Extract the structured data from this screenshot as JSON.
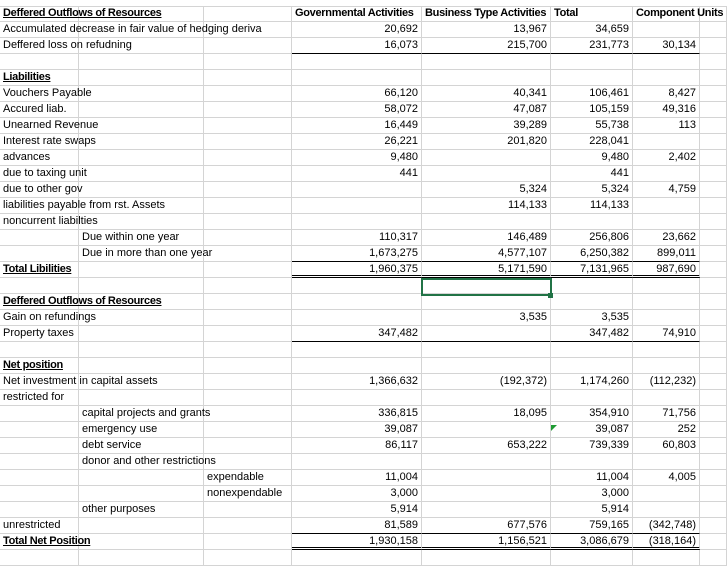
{
  "header": {
    "gov": "Governmental Activities",
    "bus": "Business Type Activities",
    "total": "Total",
    "comp": "Component Units"
  },
  "rows": [
    {
      "label": "Deffered Outflows of Resources",
      "col": 0,
      "style": "b",
      "values": [
        "",
        "",
        "",
        ""
      ]
    },
    {
      "label": "Accumulated decrease in fair value of hedging deriva",
      "col": 0,
      "values": [
        "20,692",
        "13,967",
        "34,659",
        ""
      ]
    },
    {
      "label": "Deffered loss on refudning",
      "col": 0,
      "border": "bl1",
      "values": [
        "16,073",
        "215,700",
        "231,773",
        "30,134"
      ]
    },
    {
      "label": "",
      "col": 0,
      "values": [
        "",
        "",
        "",
        ""
      ]
    },
    {
      "label": "Liabilities",
      "col": 0,
      "style": "b",
      "values": [
        "",
        "",
        "",
        ""
      ]
    },
    {
      "label": "Vouchers Payable",
      "col": 0,
      "values": [
        "66,120",
        "40,341",
        "106,461",
        "8,427"
      ]
    },
    {
      "label": "Accured liab.",
      "col": 0,
      "values": [
        "58,072",
        "47,087",
        "105,159",
        "49,316"
      ]
    },
    {
      "label": "Unearned Revenue",
      "col": 0,
      "values": [
        "16,449",
        "39,289",
        "55,738",
        "113"
      ]
    },
    {
      "label": "Interest rate swaps",
      "col": 0,
      "values": [
        "26,221",
        "201,820",
        "228,041",
        ""
      ]
    },
    {
      "label": "advances",
      "col": 0,
      "values": [
        "9,480",
        "",
        "9,480",
        "2,402"
      ]
    },
    {
      "label": "due to taxing unit",
      "col": 0,
      "values": [
        "441",
        "",
        "441",
        ""
      ]
    },
    {
      "label": "due to other gov",
      "col": 0,
      "values": [
        "",
        "5,324",
        "5,324",
        "4,759"
      ]
    },
    {
      "label": "liabilities payable from rst. Assets",
      "col": 0,
      "values": [
        "",
        "114,133",
        "114,133",
        ""
      ]
    },
    {
      "label": "noncurrent liabilties",
      "col": 0,
      "values": [
        "",
        "",
        "",
        ""
      ]
    },
    {
      "label": "Due within one year",
      "col": 1,
      "values": [
        "110,317",
        "146,489",
        "256,806",
        "23,662"
      ]
    },
    {
      "label": "Due in more than one year",
      "col": 1,
      "border": "bl1",
      "values": [
        "1,673,275",
        "4,577,107",
        "6,250,382",
        "899,011"
      ]
    },
    {
      "label": "Total Libilities",
      "col": 0,
      "style": "b",
      "border": "bl2",
      "values": [
        "1,960,375",
        "5,171,590",
        "7,131,965",
        "987,690"
      ]
    },
    {
      "label": "",
      "col": 0,
      "values": [
        "",
        "",
        "",
        ""
      ]
    },
    {
      "label": "Deffered Outflows of Resources",
      "col": 0,
      "style": "b",
      "values": [
        "",
        "",
        "",
        ""
      ]
    },
    {
      "label": "Gain on refundings",
      "col": 0,
      "values": [
        "",
        "3,535",
        "3,535",
        ""
      ]
    },
    {
      "label": "Property taxes",
      "col": 0,
      "border": "bl1",
      "values": [
        "347,482",
        "",
        "347,482",
        "74,910"
      ]
    },
    {
      "label": "",
      "col": 0,
      "values": [
        "",
        "",
        "",
        ""
      ]
    },
    {
      "label": "Net position",
      "col": 0,
      "style": "b",
      "values": [
        "",
        "",
        "",
        ""
      ]
    },
    {
      "label": "Net investment in capital assets",
      "col": 0,
      "values": [
        "1,366,632",
        "(192,372)",
        "1,174,260",
        "(112,232)"
      ]
    },
    {
      "label": "restricted for",
      "col": 0,
      "values": [
        "",
        "",
        "",
        ""
      ]
    },
    {
      "label": "capital projects and grants",
      "col": 1,
      "values": [
        "336,815",
        "18,095",
        "354,910",
        "71,756"
      ]
    },
    {
      "label": "emergency use",
      "col": 1,
      "values": [
        "39,087",
        "",
        "39,087",
        "252"
      ]
    },
    {
      "label": "debt service",
      "col": 1,
      "values": [
        "86,117",
        "653,222",
        "739,339",
        "60,803"
      ]
    },
    {
      "label": "donor and other restrictions",
      "col": 1,
      "values": [
        "",
        "",
        "",
        ""
      ]
    },
    {
      "label": "expendable",
      "col": 2,
      "values": [
        "11,004",
        "",
        "11,004",
        "4,005"
      ]
    },
    {
      "label": "nonexpendable",
      "col": 2,
      "values": [
        "3,000",
        "",
        "3,000",
        ""
      ]
    },
    {
      "label": "other purposes",
      "col": 1,
      "values": [
        "5,914",
        "",
        "5,914",
        ""
      ]
    },
    {
      "label": "unrestricted",
      "col": 0,
      "border": "bl1",
      "values": [
        "81,589",
        "677,576",
        "759,165",
        "(342,748)"
      ]
    },
    {
      "label": "Total Net Position",
      "col": 0,
      "style": "b",
      "border": "bl2",
      "values": [
        "1,930,158",
        "1,156,521",
        "3,086,679",
        "(318,164)"
      ]
    },
    {
      "label": "",
      "col": 0,
      "values": [
        "",
        "",
        "",
        ""
      ]
    }
  ]
}
